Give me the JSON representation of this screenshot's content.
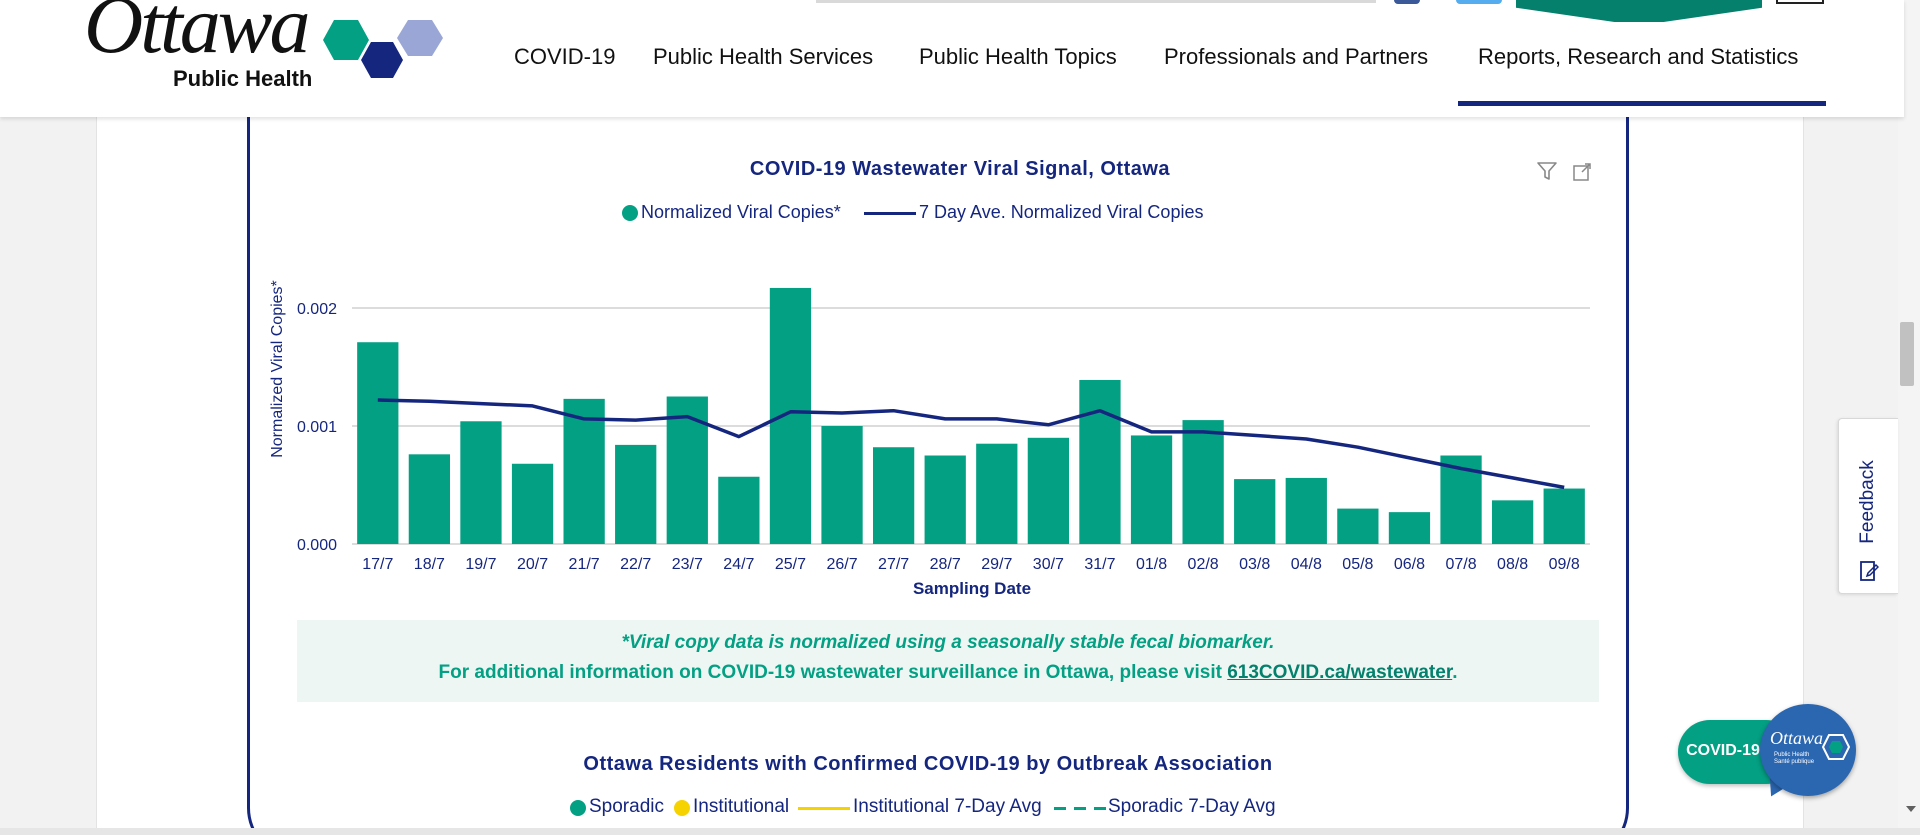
{
  "header": {
    "logo": {
      "word": "Ottawa",
      "subtitle": "Public Health"
    },
    "nav": [
      {
        "label": "COVID-19",
        "active": false
      },
      {
        "label": "Public Health Services",
        "active": false
      },
      {
        "label": "Public Health Topics",
        "active": false
      },
      {
        "label": "Professionals and Partners",
        "active": false
      },
      {
        "label": "Reports, Research and Statistics",
        "active": true
      }
    ],
    "colors": {
      "brand_navy": "#15267f",
      "brand_green": "#04a084",
      "hex_light": "#9aa7d6"
    }
  },
  "chart1": {
    "title": "COVID-19 Wastewater Viral Signal, Ottawa",
    "icons": [
      "filter-icon",
      "expand-icon"
    ],
    "legend": [
      "Normalized Viral Copies*",
      "7 Day Ave. Normalized Viral Copies"
    ],
    "y_axis_title": "Normalized Viral Copies*",
    "x_axis_title": "Sampling Date",
    "note_line1": "*Viral copy data is normalized using a seasonally stable fecal biomarker.",
    "note_line2_prefix": "For additional information on COVID-19 wastewater surveillance in Ottawa, please visit ",
    "note_link": "613COVID.ca/wastewater",
    "note_line2_suffix": "."
  },
  "chart_data": {
    "type": "bar",
    "title": "COVID-19 Wastewater Viral Signal, Ottawa",
    "xlabel": "Sampling Date",
    "ylabel": "Normalized Viral Copies*",
    "ylim": [
      0,
      0.002
    ],
    "yticks": [
      "0.000",
      "0.001",
      "0.002"
    ],
    "grid": true,
    "legend_position": "top",
    "categories": [
      "17/7",
      "18/7",
      "19/7",
      "20/7",
      "21/7",
      "22/7",
      "23/7",
      "24/7",
      "25/7",
      "26/7",
      "27/7",
      "28/7",
      "29/7",
      "30/7",
      "31/7",
      "01/8",
      "02/8",
      "03/8",
      "04/8",
      "05/8",
      "06/8",
      "07/8",
      "08/8",
      "09/8"
    ],
    "series": [
      {
        "name": "Normalized Viral Copies*",
        "kind": "bar",
        "color": "#04a084",
        "values": [
          0.00171,
          0.00076,
          0.00104,
          0.00068,
          0.00123,
          0.00084,
          0.00125,
          0.00057,
          0.00217,
          0.001,
          0.00082,
          0.00075,
          0.00085,
          0.0009,
          0.00139,
          0.00092,
          0.00105,
          0.00055,
          0.00056,
          0.0003,
          0.00027,
          0.00075,
          0.00037,
          0.00047
        ]
      },
      {
        "name": "7 Day Ave. Normalized Viral Copies",
        "kind": "line",
        "color": "#15267f",
        "values": [
          0.00122,
          0.00121,
          0.00119,
          0.00117,
          0.00106,
          0.00105,
          0.00108,
          0.00091,
          0.00112,
          0.00111,
          0.00113,
          0.00106,
          0.00106,
          0.00101,
          0.00113,
          0.00095,
          0.00095,
          0.00092,
          0.00089,
          0.00082,
          0.00073,
          0.00064,
          0.00056,
          0.00048
        ]
      }
    ]
  },
  "chart2": {
    "title": "Ottawa Residents with Confirmed COVID-19 by Outbreak Association",
    "legend": [
      {
        "label": "Sporadic",
        "symbol": "dot",
        "color": "#04a084"
      },
      {
        "label": "Institutional",
        "symbol": "dot",
        "color": "#f5d200"
      },
      {
        "label": "Institutional 7-Day Avg",
        "symbol": "line",
        "color": "#f5d200"
      },
      {
        "label": "Sporadic 7-Day Avg",
        "symbol": "dashed-line",
        "color": "#04a084"
      }
    ]
  },
  "widgets": {
    "feedback_label": "Feedback",
    "covid_badge_label": "COVID-19",
    "covid_bubble_word": "Ottawa",
    "covid_bubble_sub1": "Public Health",
    "covid_bubble_sub2": "Santé publique"
  }
}
